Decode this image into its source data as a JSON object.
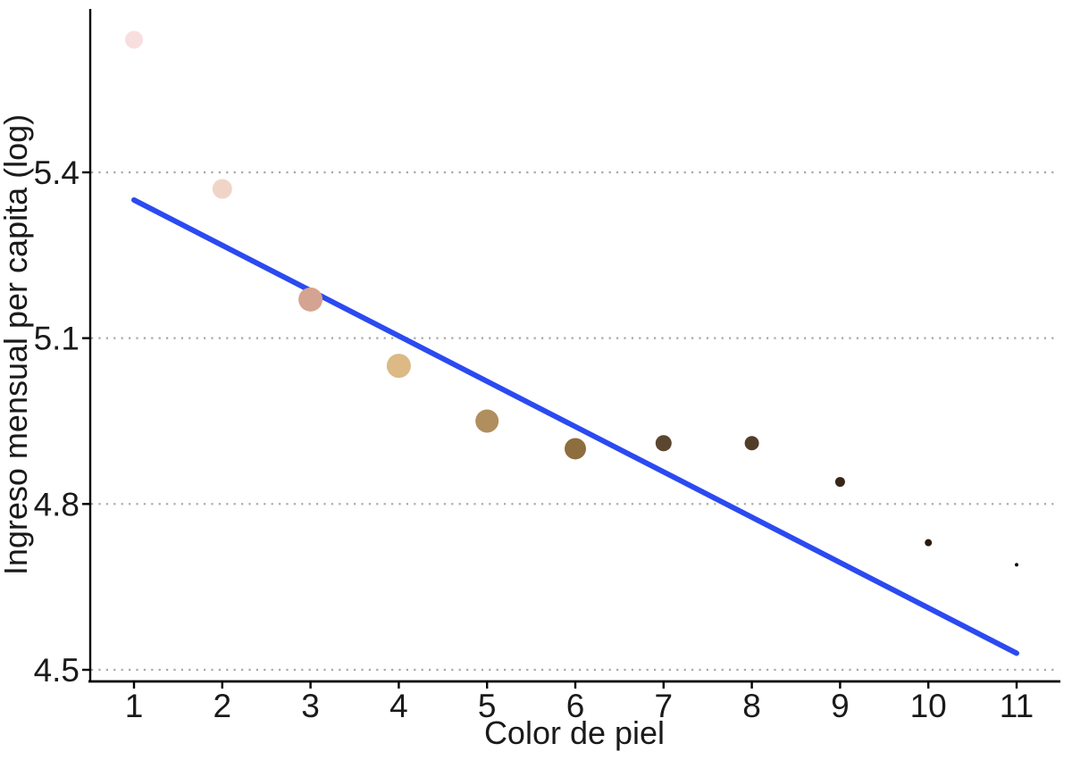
{
  "chart_data": {
    "type": "scatter",
    "title": "",
    "xlabel": "Color de piel",
    "ylabel": "Ingreso mensual per capita (log)",
    "x_ticks": [
      1,
      2,
      3,
      4,
      5,
      6,
      7,
      8,
      9,
      10,
      11
    ],
    "y_ticks": [
      4.5,
      4.8,
      5.1,
      5.4
    ],
    "xlim": [
      0.5,
      11.5
    ],
    "ylim": [
      4.48,
      5.7
    ],
    "grid": "horizontal dotted gridlines at each y tick",
    "legend": "none",
    "points": [
      {
        "x": 1,
        "y": 5.64,
        "r": 10,
        "color": "#f9dee0"
      },
      {
        "x": 2,
        "y": 5.37,
        "r": 11,
        "color": "#f1d4c8"
      },
      {
        "x": 3,
        "y": 5.17,
        "r": 13.5,
        "color": "#d5a391"
      },
      {
        "x": 4,
        "y": 5.05,
        "r": 13.5,
        "color": "#dcb985"
      },
      {
        "x": 5,
        "y": 4.95,
        "r": 13,
        "color": "#b18e5d"
      },
      {
        "x": 6,
        "y": 4.9,
        "r": 12,
        "color": "#8e6e3e"
      },
      {
        "x": 7,
        "y": 4.91,
        "r": 9,
        "color": "#5c4630"
      },
      {
        "x": 8,
        "y": 4.91,
        "r": 8,
        "color": "#523d29"
      },
      {
        "x": 9,
        "y": 4.84,
        "r": 5.5,
        "color": "#382718"
      },
      {
        "x": 10,
        "y": 4.73,
        "r": 4,
        "color": "#2a1a0e"
      },
      {
        "x": 11,
        "y": 4.69,
        "r": 2,
        "color": "#140c06"
      }
    ],
    "trend_line": {
      "x1": 1,
      "y1": 5.35,
      "x2": 11,
      "y2": 4.53,
      "color": "#2b4af0",
      "width": 6
    },
    "colors": {
      "axis": "#000000",
      "text": "#1a1a1a",
      "gridline": "#a6a6a6",
      "background": "#ffffff"
    }
  }
}
